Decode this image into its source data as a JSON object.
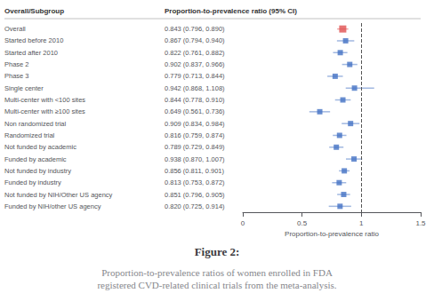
{
  "chart_data": {
    "type": "forest",
    "title": "Figure 2:",
    "subtitle": "Proportion-to-prevalence ratios of women enrolled in FDA\nregistered CVD-related clinical trials from the meta-analysis.",
    "ylabel": "Overall/Subgroup",
    "xlabel": "Proportion-to-prevalence ratio",
    "categories": [
      "Overall",
      "Started before 2010",
      "Started after 2010",
      "Phase 2",
      "Phase 3",
      "Single center",
      "Multi-center with <100 sites",
      "Multi-center with ≥100 sites",
      "Non randomized trial",
      "Randomized trial",
      "Not funded by academic",
      "Funded by academic",
      "Not funded by industry",
      "Funded by industry",
      "Not funded by NIH/Other US agency",
      "Funded by NIH/other US agency"
    ],
    "values": [
      0.843,
      0.867,
      0.822,
      0.902,
      0.779,
      0.942,
      0.844,
      0.649,
      0.909,
      0.816,
      0.789,
      0.938,
      0.856,
      0.813,
      0.851,
      0.82
    ],
    "ci_lo": [
      0.796,
      0.794,
      0.761,
      0.837,
      0.713,
      0.868,
      0.778,
      0.561,
      0.834,
      0.759,
      0.729,
      0.87,
      0.811,
      0.753,
      0.796,
      0.725
    ],
    "ci_hi": [
      0.89,
      0.94,
      0.882,
      0.966,
      0.844,
      1.108,
      0.91,
      0.736,
      0.984,
      0.874,
      0.849,
      1.007,
      0.901,
      0.872,
      0.905,
      0.914
    ],
    "annotations": {
      "header": "Proportion-to-prevalence ratio (95% CI)",
      "rows": [
        "0.843 (0.796, 0.890)",
        "0.867 (0.794, 0.940)",
        "0.822 (0.761, 0.882)",
        "0.902 (0.837, 0.966)",
        "0.779 (0.713, 0.844)",
        "0.942 (0.868, 1.108)",
        "0.844 (0.778, 0.910)",
        "0.649 (0.561, 0.736)",
        "0.909 (0.834, 0.984)",
        "0.816 (0.759, 0.874)",
        "0.789 (0.729, 0.849)",
        "0.938 (0.870, 1.007)",
        "0.856 (0.811, 0.901)",
        "0.813 (0.753, 0.872)",
        "0.851 (0.796, 0.905)",
        "0.820 (0.725, 0.914)"
      ]
    },
    "colors": [
      "#e05050",
      "#4472c4",
      "#4472c4",
      "#4472c4",
      "#4472c4",
      "#4472c4",
      "#4472c4",
      "#4472c4",
      "#4472c4",
      "#4472c4",
      "#4472c4",
      "#4472c4",
      "#4472c4",
      "#4472c4",
      "#4472c4",
      "#4472c4"
    ],
    "marker": "square",
    "ref_line": 1.0,
    "xlim": [
      0,
      1.5
    ],
    "xticks": [
      0,
      0.5,
      1.0,
      1.5
    ],
    "grid": false
  }
}
